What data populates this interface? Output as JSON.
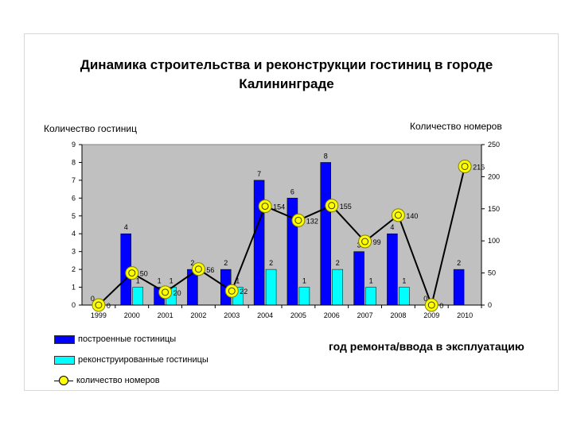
{
  "title_line1": "Динамика строительства и реконструкции гостиниц в городе",
  "title_line2": "Калининграде",
  "colors": {
    "built": "#0000ff",
    "reconstructed": "#00ffff",
    "rooms_marker": "#ffff00",
    "plot_bg": "#c0c0c0"
  },
  "chart_data": {
    "type": "bar",
    "categories": [
      "1999",
      "2000",
      "2001",
      "2002",
      "2003",
      "2004",
      "2005",
      "2006",
      "2007",
      "2008",
      "2009",
      "2010"
    ],
    "series": [
      {
        "name": "построенные гостиницы",
        "type": "bar",
        "axis": "left",
        "values": [
          0,
          4,
          1,
          2,
          2,
          7,
          6,
          8,
          3,
          4,
          0,
          2
        ]
      },
      {
        "name": "реконструированные гостиницы",
        "type": "bar",
        "axis": "left",
        "values": [
          0,
          1,
          1,
          0,
          1,
          2,
          1,
          2,
          1,
          1,
          0,
          0
        ]
      },
      {
        "name": "количество номеров",
        "type": "line",
        "axis": "right",
        "values": [
          0,
          50,
          20,
          56,
          22,
          154,
          132,
          155,
          99,
          140,
          0,
          216
        ]
      }
    ],
    "ylabel": "Количество гостиниц",
    "y2label": "Количество номеров",
    "xlabel": "год ремонта/ввода в эксплуатацию",
    "ylim": [
      0,
      9
    ],
    "y2lim": [
      0,
      250
    ],
    "yticks": [
      "0",
      "1",
      "2",
      "3",
      "4",
      "5",
      "6",
      "7",
      "8",
      "9"
    ],
    "y2ticks": [
      "0",
      "50",
      "100",
      "150",
      "200",
      "250"
    ],
    "grid": false,
    "legend_position": "bottom-left"
  }
}
